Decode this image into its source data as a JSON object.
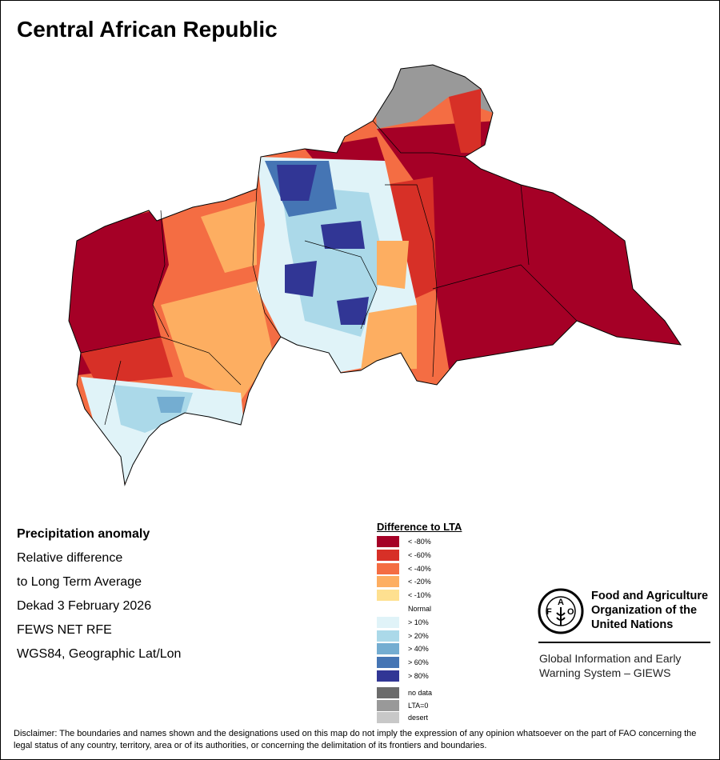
{
  "title": "Central African Republic",
  "info": {
    "heading": "Precipitation anomaly",
    "line1": "Relative difference",
    "line2": "to Long Term Average",
    "period": "Dekad 3 February 2026",
    "source": "FEWS NET RFE",
    "projection": "WGS84, Geographic Lat/Lon"
  },
  "legend": {
    "title": "Difference to LTA",
    "items": [
      {
        "label": "< -80%",
        "color": "#a50026"
      },
      {
        "label": "< -60%",
        "color": "#d73027"
      },
      {
        "label": "< -40%",
        "color": "#f46d43"
      },
      {
        "label": "< -20%",
        "color": "#fdae61"
      },
      {
        "label": "< -10%",
        "color": "#fee090"
      },
      {
        "label": "Normal",
        "color": "#ffffff"
      },
      {
        "label": "> 10%",
        "color": "#e0f3f8"
      },
      {
        "label": "> 20%",
        "color": "#abd9e9"
      },
      {
        "label": "> 40%",
        "color": "#74add1"
      },
      {
        "label": "> 60%",
        "color": "#4575b4"
      },
      {
        "label": "> 80%",
        "color": "#313695"
      }
    ],
    "extra": [
      {
        "label": "no data",
        "color": "#6b6b6b"
      },
      {
        "label": "LTA=0",
        "color": "#999999"
      },
      {
        "label": "desert",
        "color": "#c8c8c8"
      }
    ]
  },
  "fao": {
    "logo_text": "FAO FIAT PANIS",
    "line1": "Food and Agriculture",
    "line2": "Organization of the",
    "line3": "United Nations",
    "giews1": "Global Information and Early",
    "giews2": "Warning System – GIEWS"
  },
  "disclaimer": "Disclaimer: The boundaries and names shown and the designations used on this map do not imply the expression of any opinion whatsoever on the part of FAO concerning the legal status of any country, territory, area or of its authorities, or concerning the delimitation of its frontiers and boundaries."
}
